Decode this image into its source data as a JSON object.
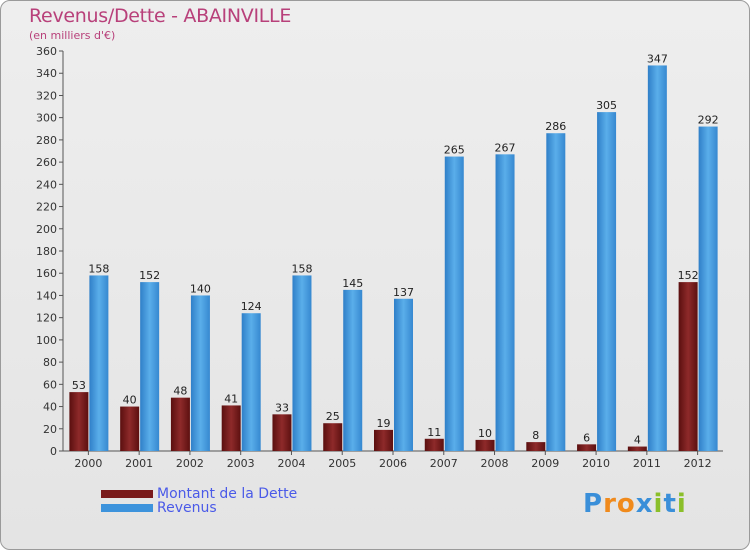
{
  "title": "Revenus/Dette - ABAINVILLE",
  "subtitle": "(en milliers d'€)",
  "colors": {
    "debt": "#7a1a1a",
    "revenue": "#3d93dc",
    "title": "#b8407a",
    "legend_text": "#4a5ae8"
  },
  "logo": {
    "text": "Proxiti",
    "letters": [
      {
        "ch": "P",
        "color": "#3a8fd9"
      },
      {
        "ch": "r",
        "color": "#f08a1c"
      },
      {
        "ch": "o",
        "color": "#f08a1c"
      },
      {
        "ch": "x",
        "color": "#3a8fd9"
      },
      {
        "ch": "i",
        "color": "#8bbf2a"
      },
      {
        "ch": "t",
        "color": "#3a8fd9"
      },
      {
        "ch": "i",
        "color": "#8bbf2a"
      }
    ]
  },
  "chart_data": {
    "type": "bar",
    "title": "Revenus/Dette - ABAINVILLE",
    "subtitle": "(en milliers d'€)",
    "xlabel": "",
    "ylabel": "",
    "ylim": [
      0,
      360
    ],
    "ytick_step": 20,
    "grid": false,
    "legend_position": "bottom-left",
    "categories": [
      "2000",
      "2001",
      "2002",
      "2003",
      "2004",
      "2005",
      "2006",
      "2007",
      "2008",
      "2009",
      "2010",
      "2011",
      "2012"
    ],
    "series": [
      {
        "name": "Montant de la Dette",
        "color": "#7a1a1a",
        "values": [
          53,
          40,
          48,
          41,
          33,
          25,
          19,
          11,
          10,
          8,
          6,
          4,
          152
        ]
      },
      {
        "name": "Revenus",
        "color": "#3d93dc",
        "values": [
          158,
          152,
          140,
          124,
          158,
          145,
          137,
          265,
          267,
          286,
          305,
          347,
          292
        ]
      }
    ]
  }
}
